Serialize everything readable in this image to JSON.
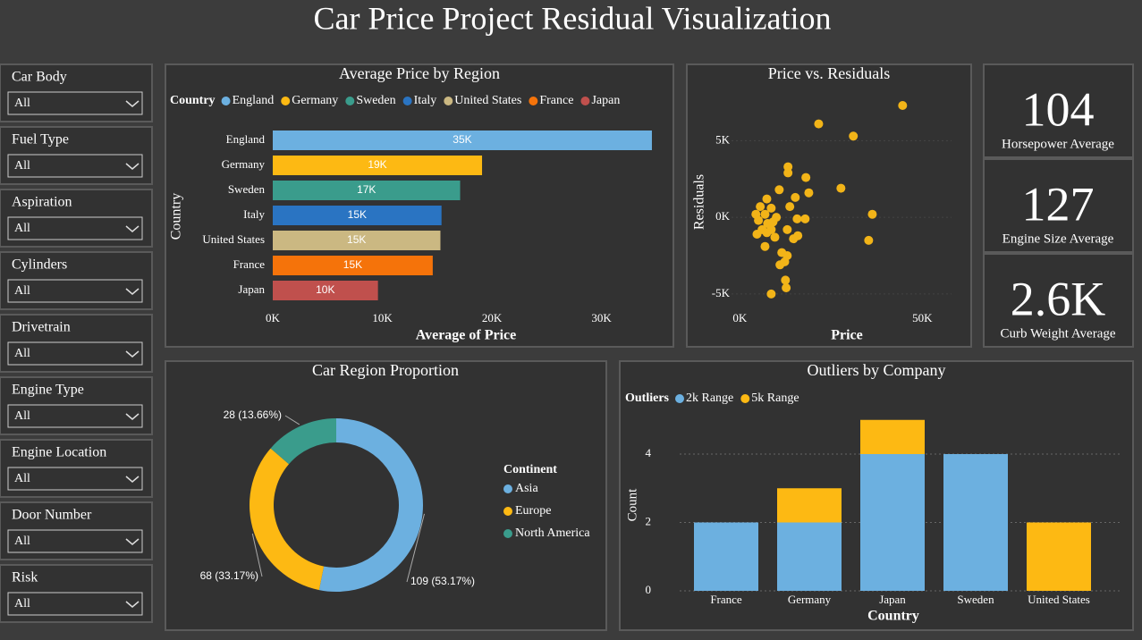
{
  "title": "Car Price Project Residual Visualization",
  "slicers": [
    {
      "label": "Car Body",
      "selection": "All"
    },
    {
      "label": "Fuel Type",
      "selection": "All"
    },
    {
      "label": "Aspiration",
      "selection": "All"
    },
    {
      "label": "Cylinders",
      "selection": "All"
    },
    {
      "label": "Drivetrain",
      "selection": "All"
    },
    {
      "label": "Engine Type",
      "selection": "All"
    },
    {
      "label": "Engine Location",
      "selection": "All"
    },
    {
      "label": "Door Number",
      "selection": "All"
    },
    {
      "label": "Risk",
      "selection": "All"
    }
  ],
  "cards": [
    {
      "value": 104,
      "label": "Horsepower Average"
    },
    {
      "value": 127,
      "label": "Engine Size Average"
    },
    {
      "value": 2600,
      "value_label": "2.6K",
      "label": "Curb Weight Average"
    }
  ],
  "chart_data": [
    {
      "type": "hbar",
      "title": "Average Price by Region",
      "legend_title": "Country",
      "categories": [
        "England",
        "Germany",
        "Sweden",
        "Italy",
        "United States",
        "France",
        "Japan"
      ],
      "values": [
        34600,
        19100,
        17100,
        15400,
        15300,
        14600,
        9600
      ],
      "value_labels": [
        "35K",
        "19K",
        "17K",
        "15K",
        "15K",
        "15K",
        "10K"
      ],
      "colors": [
        "#6cb0e0",
        "#fdb913",
        "#3a9c8c",
        "#2a74c2",
        "#cbb882",
        "#f5730a",
        "#c0504d"
      ],
      "xlabel": "Average of Price",
      "ylabel": "Country",
      "xlim": [
        0,
        35500
      ],
      "xticks": [
        {
          "value": 0,
          "label": "0K"
        },
        {
          "value": 10000,
          "label": "10K"
        },
        {
          "value": 20000,
          "label": "20K"
        },
        {
          "value": 30000,
          "label": "30K"
        }
      ]
    },
    {
      "type": "scatter",
      "title": "Price vs. Residuals",
      "xlabel": "Price",
      "ylabel": "Residuals",
      "color": "#f2b418",
      "x": [
        44600,
        21600,
        31100,
        27700,
        36300,
        35300,
        13200,
        13200,
        18100,
        18900,
        10800,
        15200,
        7400,
        8600,
        6900,
        10000,
        15700,
        17900,
        5100,
        7600,
        6100,
        8600,
        4700,
        13000,
        15900,
        9600,
        6900,
        11500,
        12300,
        11000,
        13000,
        12500,
        12700,
        8600,
        4400,
        5600,
        7400,
        13700,
        9100,
        14700
      ],
      "values": [
        7300,
        6100,
        5300,
        1900,
        200,
        -1500,
        3300,
        2900,
        2600,
        1600,
        1800,
        1300,
        1200,
        600,
        200,
        0,
        -100,
        -100,
        -200,
        -400,
        -800,
        -800,
        -1100,
        -800,
        -1200,
        -1300,
        -1900,
        -2300,
        -2900,
        -3100,
        -2500,
        -4100,
        -4600,
        -5000,
        200,
        700,
        -1000,
        700,
        -300,
        -1400
      ],
      "xlim": [
        -3500,
        58000
      ],
      "ylim": [
        -6000,
        8000
      ],
      "xticks": [
        {
          "value": 0,
          "label": "0K"
        },
        {
          "value": 50000,
          "label": "50K"
        }
      ],
      "yticks": [
        {
          "value": -5000,
          "label": "-5K"
        },
        {
          "value": 0,
          "label": "0K"
        },
        {
          "value": 5000,
          "label": "5K"
        }
      ]
    },
    {
      "type": "donut",
      "title": "Car Region Proportion",
      "legend_title": "Continent",
      "categories": [
        "Asia",
        "Europe",
        "North America"
      ],
      "values": [
        109,
        68,
        28
      ],
      "value_labels": [
        "109 (53.17%)",
        "68 (33.17%)",
        "28 (13.66%)"
      ],
      "colors": [
        "#6cb0e0",
        "#fdb913",
        "#3a9c8c"
      ]
    },
    {
      "type": "stacked_bar",
      "title": "Outliers by Company",
      "legend_title": "Outliers",
      "categories": [
        "France",
        "Germany",
        "Japan",
        "Sweden",
        "United States"
      ],
      "series": [
        {
          "name": "2k Range",
          "color": "#6cb0e0",
          "values": [
            2,
            2,
            4,
            4,
            null
          ]
        },
        {
          "name": "5k Range",
          "color": "#fdb913",
          "values": [
            null,
            1,
            1,
            null,
            2
          ]
        }
      ],
      "xlabel": "Country",
      "ylabel": "Count",
      "ylim": [
        0,
        5
      ],
      "yticks": [
        0,
        2,
        4
      ],
      "grid": true
    }
  ]
}
